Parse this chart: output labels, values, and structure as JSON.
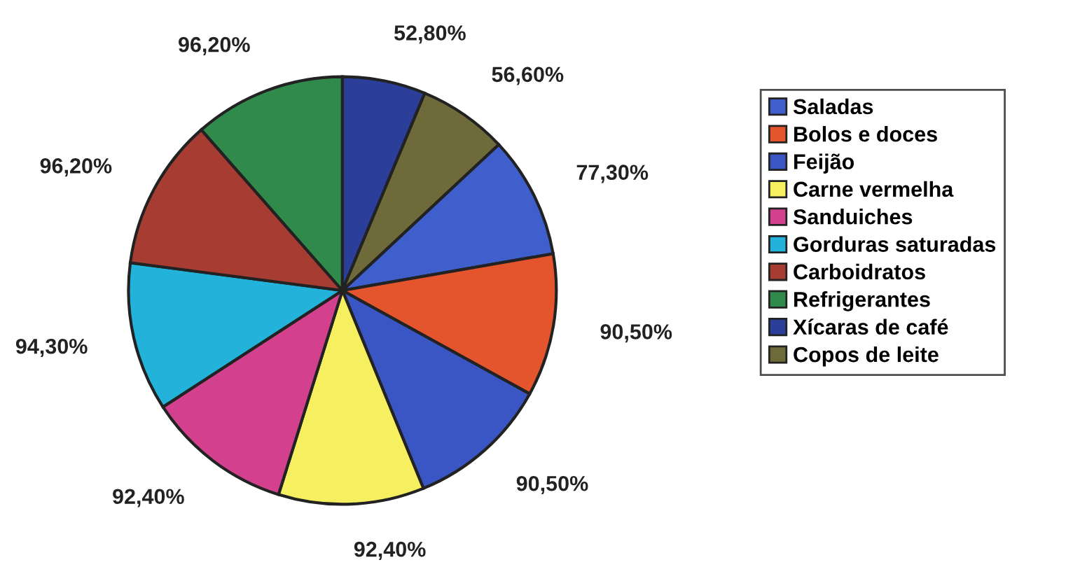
{
  "chart_data": {
    "type": "pie",
    "categories": [
      "Saladas",
      "Bolos e doces",
      "Feijão",
      "Carne vermelha",
      "Sanduiches",
      "Gorduras saturadas",
      "Carboidratos",
      "Refrigerantes",
      "Xícaras de café",
      "Copos de leite"
    ],
    "values": [
      77.3,
      90.5,
      90.5,
      92.4,
      92.4,
      94.3,
      96.2,
      96.2,
      52.8,
      56.6
    ],
    "value_labels": [
      "77,30%",
      "90,50%",
      "90,50%",
      "92,40%",
      "92,40%",
      "94,30%",
      "96,20%",
      "96,20%",
      "52,80%",
      "56,60%"
    ],
    "colors": [
      "#3f5fcc",
      "#e4552e",
      "#3a55c4",
      "#f6f060",
      "#d2408e",
      "#22b2da",
      "#a63c32",
      "#2f8a4c",
      "#2a3e9a",
      "#6e6a3a"
    ],
    "legend": "right"
  }
}
